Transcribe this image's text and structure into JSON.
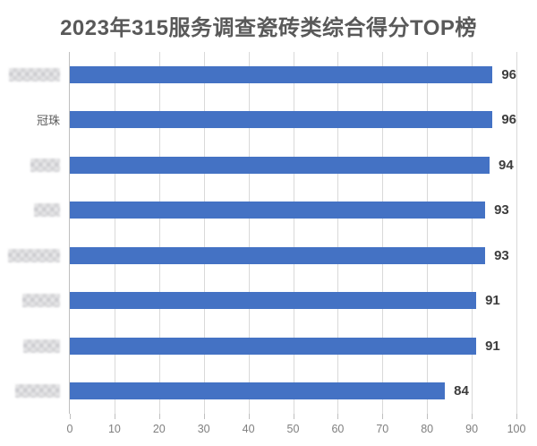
{
  "title": "2023年315服务调查瓷砖类综合得分TOP榜",
  "chart_data": {
    "type": "bar",
    "orientation": "horizontal",
    "title": "2023年315服务调查瓷砖类综合得分TOP榜",
    "categories": [
      {
        "label": "",
        "redacted": true,
        "blur_width": 57
      },
      {
        "label": "冠珠",
        "redacted": false,
        "blur_width": 0
      },
      {
        "label": "",
        "redacted": true,
        "blur_width": 33
      },
      {
        "label": "",
        "redacted": true,
        "blur_width": 29
      },
      {
        "label": "",
        "redacted": true,
        "blur_width": 58
      },
      {
        "label": "",
        "redacted": true,
        "blur_width": 42
      },
      {
        "label": "",
        "redacted": true,
        "blur_width": 41
      },
      {
        "label": "",
        "redacted": true,
        "blur_width": 50
      }
    ],
    "values": [
      96,
      96,
      94,
      93,
      93,
      91,
      91,
      84
    ],
    "data_labels_shown": true,
    "xlabel": "",
    "ylabel": "",
    "xlim": [
      0,
      100
    ],
    "xticks": [
      0,
      10,
      20,
      30,
      40,
      50,
      60,
      70,
      80,
      90,
      100
    ],
    "grid": true,
    "legend": "none",
    "colors": {
      "bar": "#4472c4",
      "gridline": "#d9d9d9",
      "axis_line": "#bfbfbf",
      "title_text": "#595959",
      "category_text": "#595959",
      "value_text": "#3d3d3d",
      "tick_text": "#7f7f7f",
      "background": "#ffffff"
    }
  }
}
